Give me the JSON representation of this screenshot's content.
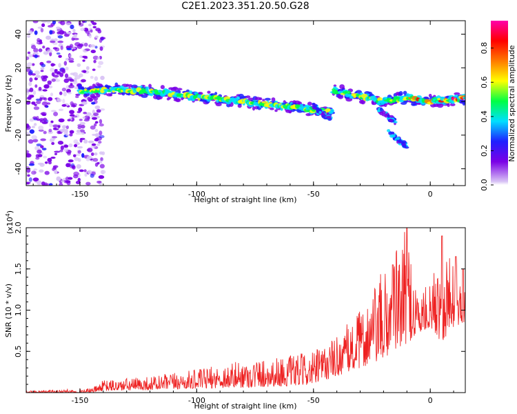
{
  "title": "C2E1.2023.351.20.50.G28",
  "chart_data": [
    {
      "type": "heatmap",
      "xlabel": "Height of straight line (km)",
      "ylabel": "Frequency (Hz)",
      "xlim": [
        -173,
        15
      ],
      "ylim": [
        -50,
        48
      ],
      "xticks": [
        "-150",
        "-100",
        "-50",
        "0"
      ],
      "yticks": [
        "-40",
        "-20",
        "0",
        "20",
        "40"
      ],
      "colorbar": {
        "label": "Normalized spectral amplitude",
        "range": [
          0.0,
          0.96
        ],
        "ticks": [
          "0.0",
          "0.2",
          "0.4",
          "0.6",
          "0.8"
        ],
        "colors": [
          "#ffffff",
          "#d9c4f5",
          "#7a00e6",
          "#1f1fff",
          "#00dfff",
          "#00ff44",
          "#ffff00",
          "#ff7a00",
          "#ff0000",
          "#ff00aa"
        ]
      },
      "ridge": {
        "description_points_x": [
          -150,
          -140,
          -120,
          -100,
          -80,
          -60,
          -45,
          -40,
          -30,
          -20,
          -10,
          0,
          15
        ],
        "frequency_hz": [
          6,
          7,
          6,
          3,
          0,
          -3,
          -6,
          6,
          3,
          0,
          2,
          0,
          2
        ]
      },
      "branches": [
        {
          "x": [
            -50,
            -42
          ],
          "y": [
            -2,
            -12
          ]
        },
        {
          "x": [
            -22,
            -15
          ],
          "y": [
            -5,
            -12
          ]
        },
        {
          "x": [
            -18,
            -10
          ],
          "y": [
            -18,
            -27
          ]
        }
      ],
      "noise_region_x": [
        -173,
        -141
      ]
    },
    {
      "type": "line",
      "xlabel": "Height of straight line (km)",
      "ylabel": "SNR (10 * v/v)",
      "y_multiplier": "(x10",
      "y_multiplier_exp": "4",
      "xlim": [
        -173,
        15
      ],
      "ylim": [
        0,
        2.0
      ],
      "xticks": [
        "-150",
        "-100",
        "-50",
        "0"
      ],
      "yticks": [
        "0.5",
        "1.0",
        "1.5",
        "2.0"
      ],
      "color": "#ee2222",
      "envelope": {
        "x": [
          -173,
          -145,
          -140,
          -120,
          -100,
          -80,
          -60,
          -50,
          -40,
          -30,
          -20,
          -15,
          -10,
          -5,
          0,
          5,
          10,
          15
        ],
        "y_max": [
          0.02,
          0.05,
          0.15,
          0.2,
          0.28,
          0.4,
          0.45,
          0.5,
          0.7,
          1.0,
          1.5,
          1.75,
          2.0,
          1.25,
          1.3,
          1.9,
          1.65,
          1.25
        ],
        "y_min": [
          0.0,
          0.0,
          0.02,
          0.03,
          0.05,
          0.06,
          0.08,
          0.1,
          0.2,
          0.3,
          0.4,
          0.5,
          0.6,
          0.7,
          0.8,
          0.6,
          0.8,
          0.85
        ]
      },
      "peaks": [
        {
          "x": -10,
          "y": 2.0
        },
        {
          "x": 5,
          "y": 1.9
        },
        {
          "x": 11,
          "y": 1.65
        },
        {
          "x": -16,
          "y": 1.55
        },
        {
          "x": 14,
          "y": 1.5
        }
      ]
    }
  ]
}
